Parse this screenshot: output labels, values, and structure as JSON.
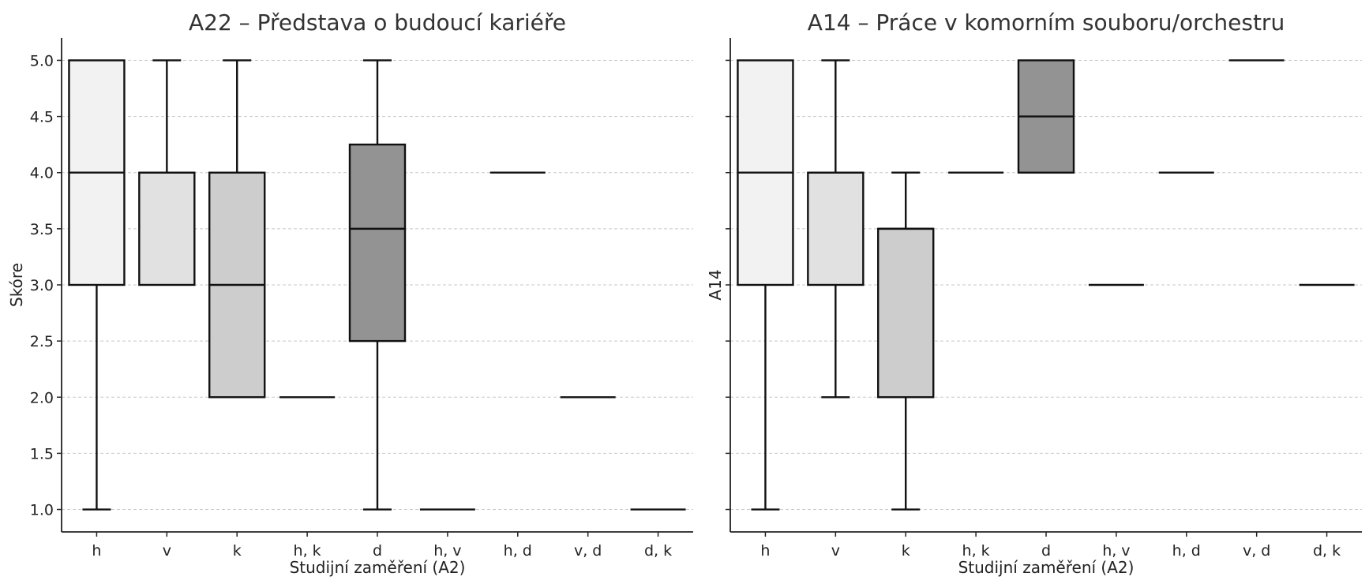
{
  "chart_data": [
    {
      "type": "box",
      "title": "A22 – Představa o budoucí kariéře",
      "xlabel": "Studijní zaměření (A2)",
      "ylabel": "Skóre",
      "ylim": [
        0.8,
        5.2
      ],
      "yticks": [
        "1.0",
        "1.5",
        "2.0",
        "2.5",
        "3.0",
        "3.5",
        "4.0",
        "4.5",
        "5.0"
      ],
      "grid": "horizontal dashed",
      "categories": [
        "h",
        "v",
        "k",
        "h, k",
        "d",
        "h, v",
        "h, d",
        "v, d",
        "d, k"
      ],
      "boxes": [
        {
          "category": "h",
          "whisker_low": 1,
          "q1": 3,
          "median": 4,
          "q3": 5,
          "whisker_high": 5,
          "color": "#f2f2f2"
        },
        {
          "category": "v",
          "whisker_low": 3,
          "q1": 3,
          "median": 4,
          "q3": 4,
          "whisker_high": 5,
          "color": "#e1e1e1"
        },
        {
          "category": "k",
          "whisker_low": 2,
          "q1": 2,
          "median": 3,
          "q3": 4,
          "whisker_high": 5,
          "color": "#cdcdcd"
        },
        {
          "category": "h, k",
          "whisker_low": 2,
          "q1": 2,
          "median": 2,
          "q3": 2,
          "whisker_high": 2,
          "color": "#bdbdbd"
        },
        {
          "category": "d",
          "whisker_low": 1,
          "q1": 2.5,
          "median": 3.5,
          "q3": 4.25,
          "whisker_high": 5,
          "color": "#939393"
        },
        {
          "category": "h, v",
          "whisker_low": 1,
          "q1": 1,
          "median": 1,
          "q3": 1,
          "whisker_high": 1,
          "color": "#7a7a7a"
        },
        {
          "category": "h, d",
          "whisker_low": 4,
          "q1": 4,
          "median": 4,
          "q3": 4,
          "whisker_high": 4,
          "color": "#6a6a6a"
        },
        {
          "category": "v, d",
          "whisker_low": 2,
          "q1": 2,
          "median": 2,
          "q3": 2,
          "whisker_high": 2,
          "color": "#5a5a5a"
        },
        {
          "category": "d, k",
          "whisker_low": 1,
          "q1": 1,
          "median": 1,
          "q3": 1,
          "whisker_high": 1,
          "color": "#4a4a4a"
        }
      ]
    },
    {
      "type": "box",
      "title": "A14 – Práce v komorním souboru/orchestru",
      "xlabel": "Studijní zaměření (A2)",
      "ylabel": "A14",
      "ylim": [
        0.8,
        5.2
      ],
      "yticks": [],
      "grid": "horizontal dashed",
      "categories": [
        "h",
        "v",
        "k",
        "h, k",
        "d",
        "h, v",
        "h, d",
        "v, d",
        "d, k"
      ],
      "boxes": [
        {
          "category": "h",
          "whisker_low": 1,
          "q1": 3,
          "median": 4,
          "q3": 5,
          "whisker_high": 5,
          "color": "#f2f2f2"
        },
        {
          "category": "v",
          "whisker_low": 2,
          "q1": 3,
          "median": 4,
          "q3": 4,
          "whisker_high": 5,
          "color": "#e1e1e1"
        },
        {
          "category": "k",
          "whisker_low": 1,
          "q1": 2,
          "median": 3.5,
          "q3": 3.5,
          "whisker_high": 4,
          "color": "#cdcdcd"
        },
        {
          "category": "h, k",
          "whisker_low": 4,
          "q1": 4,
          "median": 4,
          "q3": 4,
          "whisker_high": 4,
          "color": "#bdbdbd"
        },
        {
          "category": "d",
          "whisker_low": 4,
          "q1": 4,
          "median": 4.5,
          "q3": 5,
          "whisker_high": 5,
          "color": "#939393"
        },
        {
          "category": "h, v",
          "whisker_low": 3,
          "q1": 3,
          "median": 3,
          "q3": 3,
          "whisker_high": 3,
          "color": "#7a7a7a"
        },
        {
          "category": "h, d",
          "whisker_low": 4,
          "q1": 4,
          "median": 4,
          "q3": 4,
          "whisker_high": 4,
          "color": "#6a6a6a"
        },
        {
          "category": "v, d",
          "whisker_low": 5,
          "q1": 5,
          "median": 5,
          "q3": 5,
          "whisker_high": 5,
          "color": "#5a5a5a"
        },
        {
          "category": "d, k",
          "whisker_low": 3,
          "q1": 3,
          "median": 3,
          "q3": 3,
          "whisker_high": 3,
          "color": "#4a4a4a"
        }
      ]
    }
  ]
}
